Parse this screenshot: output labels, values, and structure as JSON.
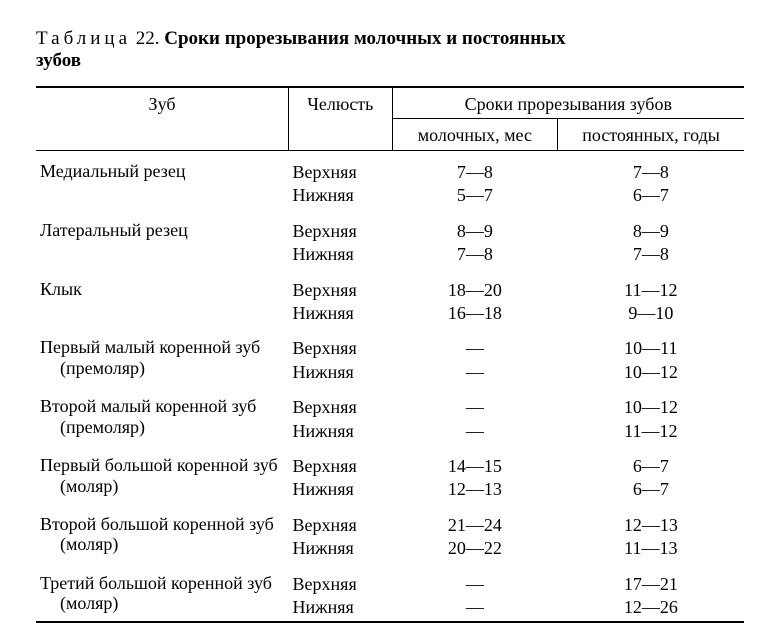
{
  "caption": {
    "label": "Таблица",
    "number": "22.",
    "title_line1": "Сроки прорезывания молочных и постоянных",
    "title_line2": "зубов"
  },
  "headers": {
    "tooth": "Зуб",
    "jaw": "Челюсть",
    "timing_group": "Сроки прорезывания зубов",
    "milk": "молочных, мес",
    "permanent": "постоянных, годы"
  },
  "jaw_labels": {
    "upper": "Верхняя",
    "lower": "Нижняя"
  },
  "rows": [
    {
      "tooth": "Медиальный резец",
      "milk": {
        "upper": "7—8",
        "lower": "5—7"
      },
      "perm": {
        "upper": "7—8",
        "lower": "6—7"
      }
    },
    {
      "tooth": "Латеральный резец",
      "milk": {
        "upper": "8—9",
        "lower": "7—8"
      },
      "perm": {
        "upper": "8—9",
        "lower": "7—8"
      }
    },
    {
      "tooth": "Клык",
      "milk": {
        "upper": "18—20",
        "lower": "16—18"
      },
      "perm": {
        "upper": "11—12",
        "lower": "9—10"
      }
    },
    {
      "tooth": "Первый малый коренной зуб (премоляр)",
      "milk": {
        "upper": "—",
        "lower": "—"
      },
      "perm": {
        "upper": "10—11",
        "lower": "10—12"
      }
    },
    {
      "tooth": "Второй малый коренной зуб (премоляр)",
      "milk": {
        "upper": "—",
        "lower": "—"
      },
      "perm": {
        "upper": "10—12",
        "lower": "11—12"
      }
    },
    {
      "tooth": "Первый большой коренной зуб (моляр)",
      "milk": {
        "upper": "14—15",
        "lower": "12—13"
      },
      "perm": {
        "upper": "6—7",
        "lower": "6—7"
      }
    },
    {
      "tooth": "Второй большой коренной зуб (моляр)",
      "milk": {
        "upper": "21—24",
        "lower": "20—22"
      },
      "perm": {
        "upper": "12—13",
        "lower": "11—13"
      }
    },
    {
      "tooth": "Третий большой коренной зуб (моляр)",
      "milk": {
        "upper": "—",
        "lower": "—"
      },
      "perm": {
        "upper": "17—21",
        "lower": "12—26"
      }
    }
  ],
  "style": {
    "font_family": "Times New Roman",
    "base_font_size_pt": 14,
    "rule_color": "#000000",
    "background": "#ffffff",
    "em_dash": "—"
  }
}
